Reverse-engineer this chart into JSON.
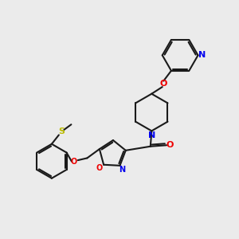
{
  "bg_color": "#ebebeb",
  "bond_color": "#1a1a1a",
  "N_color": "#0000ee",
  "O_color": "#ee0000",
  "S_color": "#bbbb00",
  "lw": 1.5,
  "figsize": [
    3.0,
    3.0
  ],
  "dpi": 100,
  "xlim": [
    0,
    10
  ],
  "ylim": [
    0,
    10
  ]
}
